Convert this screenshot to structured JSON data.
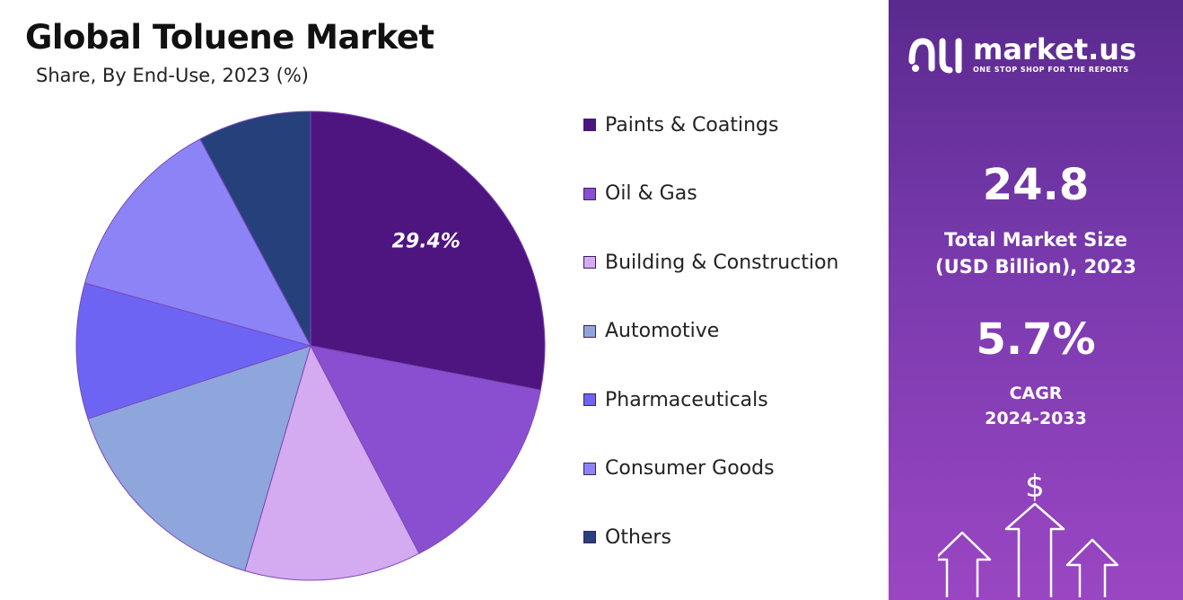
{
  "header": {
    "title": "Global Toluene Market",
    "subtitle": "Share, By End-Use, 2023 (%)"
  },
  "chart_data": {
    "type": "pie",
    "title": "Global Toluene Market",
    "subtitle": "Share, By End-Use, 2023 (%)",
    "unit": "%",
    "categories": [
      "Paints & Coatings",
      "Oil & Gas",
      "Building & Construction",
      "Automotive",
      "Pharmaceuticals",
      "Consumer Goods",
      "Others"
    ],
    "values": [
      29.4,
      15.0,
      12.8,
      16.2,
      9.8,
      13.5,
      8.2
    ],
    "colors": [
      "#4e1580",
      "#8a4fd0",
      "#d4aaf0",
      "#8ea6dc",
      "#6e64f4",
      "#8c84f6",
      "#26407c"
    ],
    "data_labels": [
      "29.4%",
      "",
      "",
      "",
      "",
      "",
      ""
    ],
    "legend_position": "right"
  },
  "sidebar": {
    "brand_name": "market.us",
    "brand_tagline": "ONE STOP SHOP FOR THE REPORTS",
    "market_size_value": "24.8",
    "market_size_label_1": "Total Market Size",
    "market_size_label_2": "(USD Billion), 2023",
    "cagr_value": "5.7%",
    "cagr_label_1": "CAGR",
    "cagr_label_2": "2024-2033",
    "currency_symbol": "$",
    "colors": {
      "panel_top": "#5a2a8e",
      "panel_bottom": "#9a46c2"
    }
  }
}
